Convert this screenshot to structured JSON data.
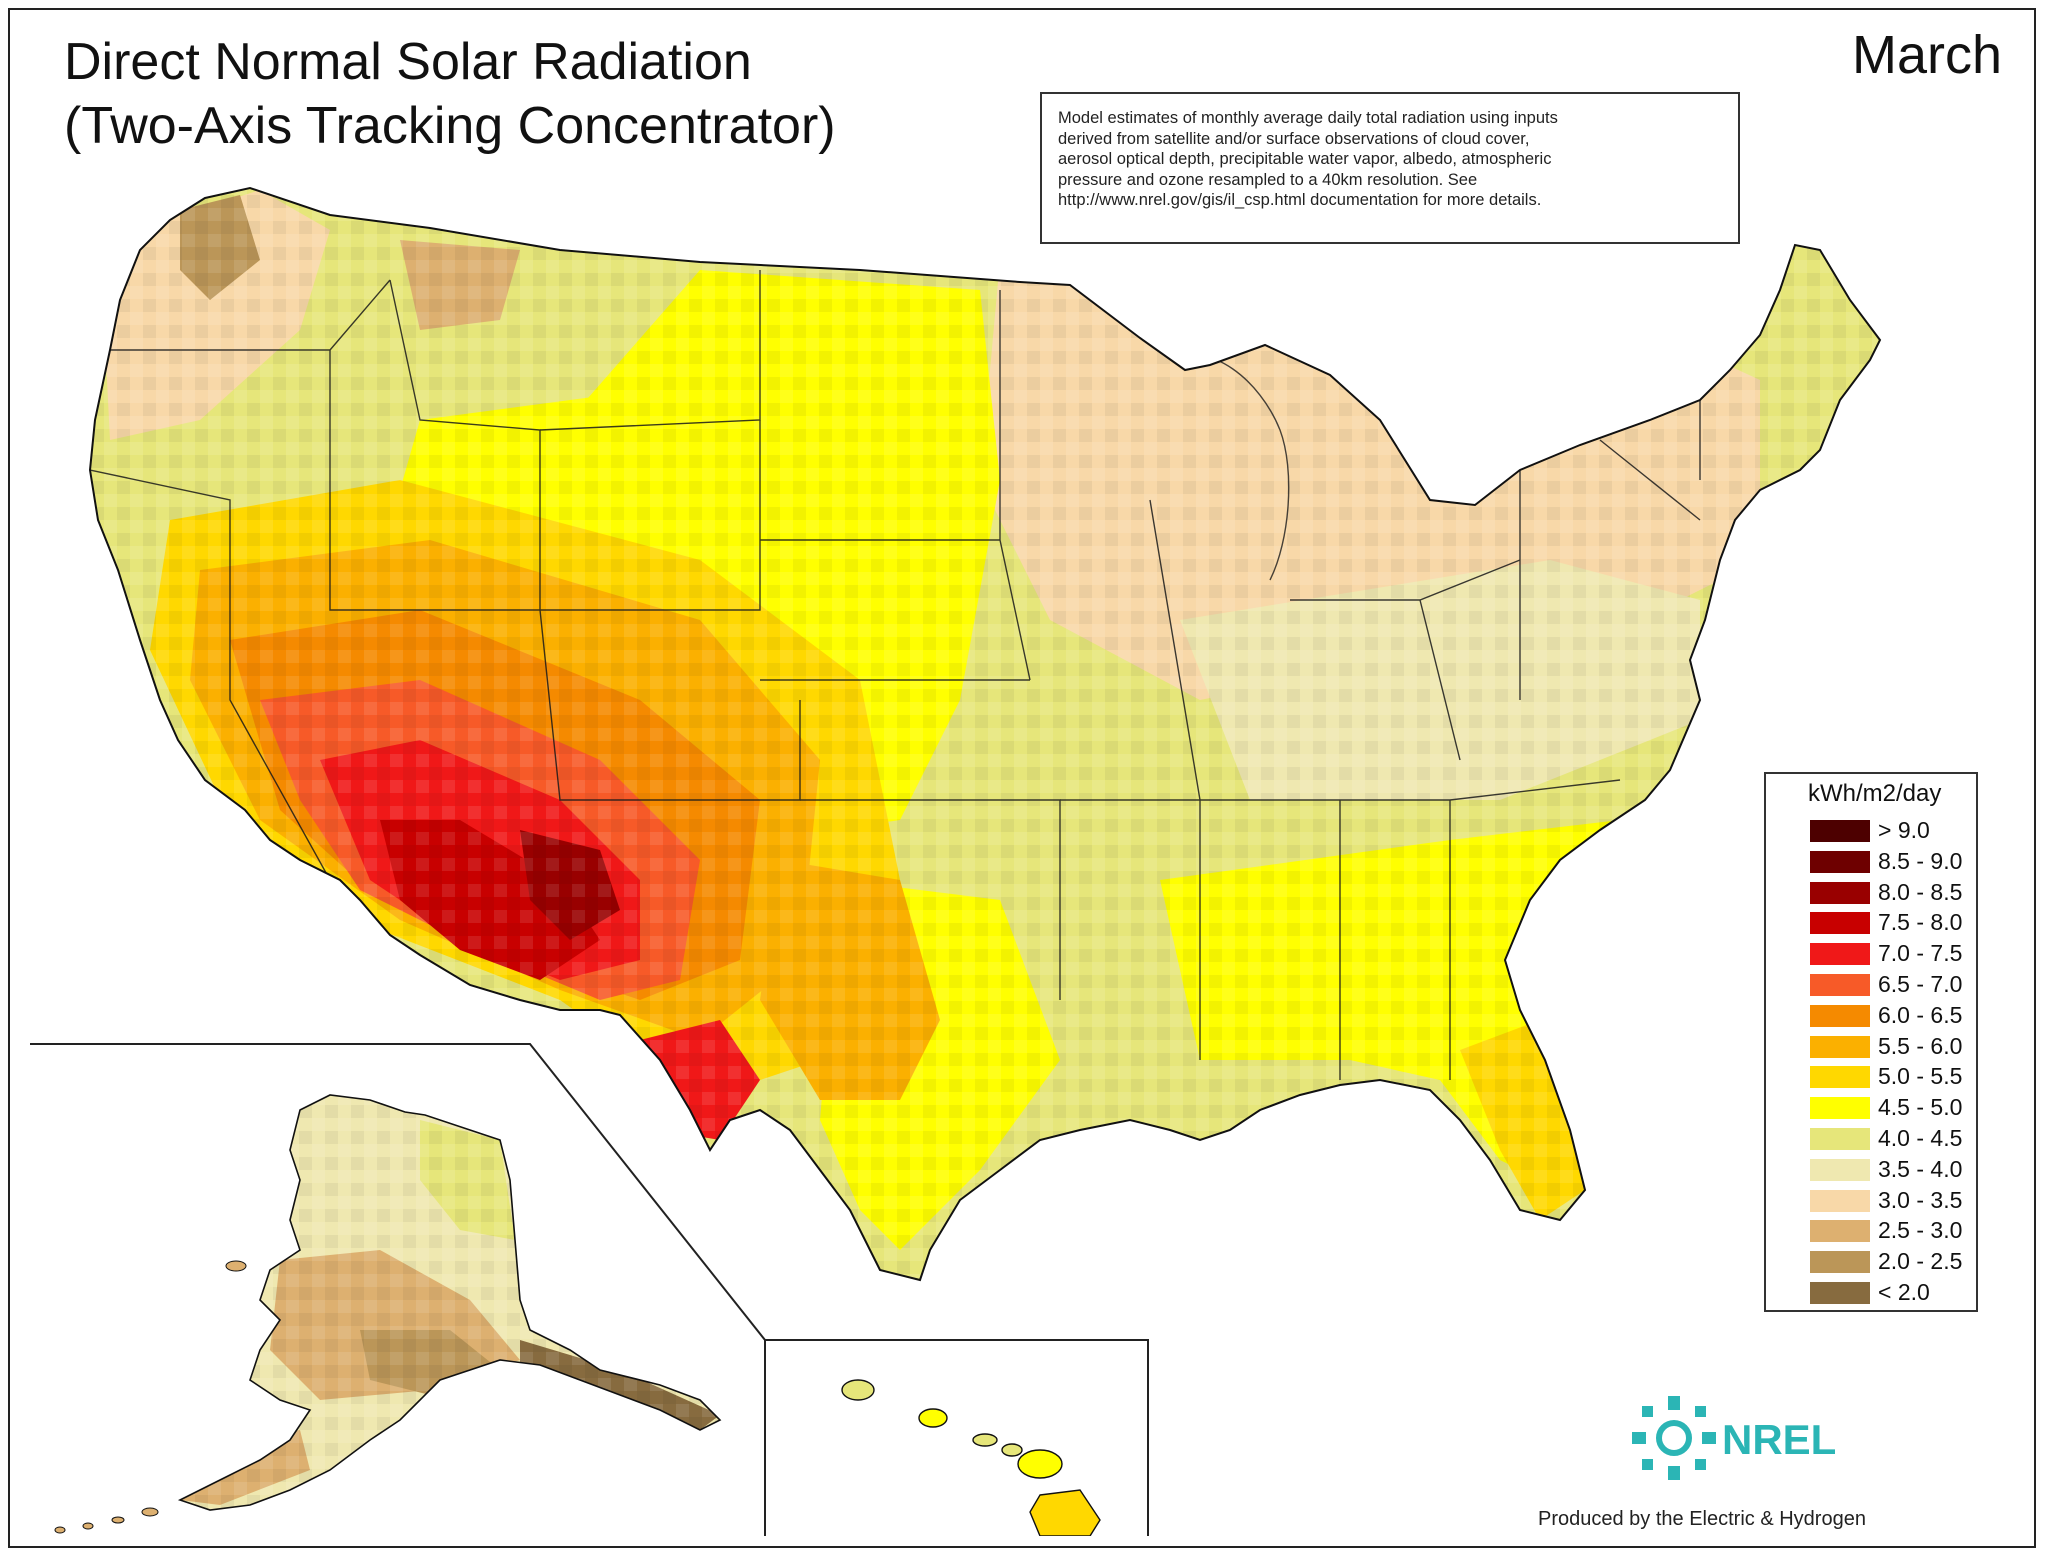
{
  "title": {
    "line1": "Direct Normal Solar Radiation",
    "line2": "(Two-Axis Tracking Concentrator)"
  },
  "month": "March",
  "note": {
    "lines": [
      "Model estimates of monthly average daily total radiation using inputs",
      "derived from satellite and/or surface observations of cloud cover,",
      "aerosol optical depth, precipitable water vapor, albedo, atmospheric",
      "pressure and ozone resampled to a 40km resolution.  See",
      "http://www.nrel.gov/gis/il_csp.html documentation for more details."
    ]
  },
  "legend": {
    "unit": "kWh/m2/day",
    "classes": [
      {
        "label": "> 9.0",
        "color": "#4d0000"
      },
      {
        "label": "8.5 - 9.0",
        "color": "#6e0000"
      },
      {
        "label": "8.0 - 8.5",
        "color": "#990000"
      },
      {
        "label": "7.5 - 8.0",
        "color": "#c80000"
      },
      {
        "label": "7.0 - 7.5",
        "color": "#f01818"
      },
      {
        "label": "6.5 - 7.0",
        "color": "#f75a28"
      },
      {
        "label": "6.0 - 6.5",
        "color": "#f58a00"
      },
      {
        "label": "5.5 - 6.0",
        "color": "#fbb000"
      },
      {
        "label": "5.0 - 5.5",
        "color": "#ffd800"
      },
      {
        "label": "4.5 - 5.0",
        "color": "#ffff00"
      },
      {
        "label": "4.0 - 4.5",
        "color": "#e6e67a"
      },
      {
        "label": "3.5 - 4.0",
        "color": "#efe8b0"
      },
      {
        "label": "3.0 - 3.5",
        "color": "#f8d8a8"
      },
      {
        "label": "2.5 - 3.0",
        "color": "#ddb070"
      },
      {
        "label": "2.0 - 2.5",
        "color": "#bb9658"
      },
      {
        "label": "< 2.0",
        "color": "#876b3f"
      }
    ]
  },
  "logo": {
    "text": "NREL",
    "color": "#2bb5b5"
  },
  "credit": "Produced by the Electric & Hydrogen",
  "map_regions": {
    "conus": "Contiguous United States",
    "alaska": "Alaska",
    "hawaii": "Hawaii"
  }
}
